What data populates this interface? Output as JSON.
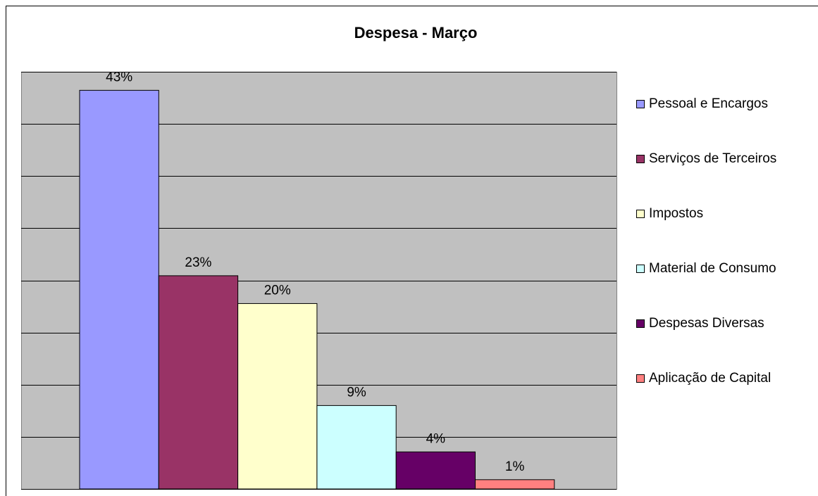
{
  "chart_data": {
    "type": "bar",
    "title": "Despesa - Março",
    "categories": [
      "Pessoal e Encargos",
      "Serviços de Terceiros",
      "Impostos",
      "Material de Consumo",
      "Despesas Diversas",
      "Aplicação de Capital"
    ],
    "values": [
      43,
      23,
      20,
      9,
      4,
      1
    ],
    "value_labels": [
      "43%",
      "23%",
      "20%",
      "9%",
      "4%",
      "1%"
    ],
    "colors": [
      "#9999ff",
      "#993366",
      "#ffffcc",
      "#ccffff",
      "#660066",
      "#ff8080"
    ],
    "ylim": [
      0,
      45
    ],
    "yticks": [
      0,
      5.625,
      11.25,
      16.875,
      22.5,
      28.125,
      33.75,
      39.375,
      45
    ],
    "grid": true,
    "legend": "right"
  }
}
